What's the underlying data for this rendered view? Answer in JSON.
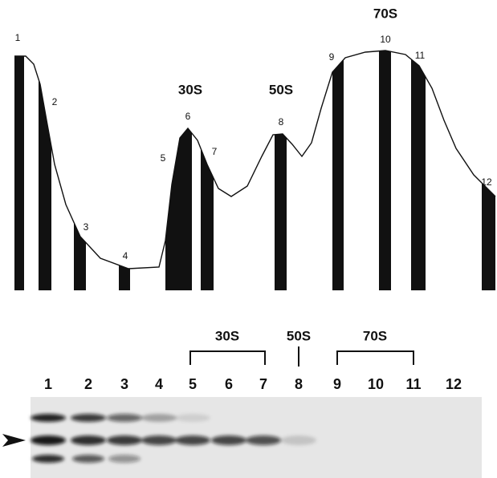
{
  "profile": {
    "fraction_labels": [
      "1",
      "2",
      "3",
      "4",
      "5",
      "6",
      "7",
      "8",
      "9",
      "10",
      "11",
      "12"
    ],
    "peak_labels": [
      "30S",
      "50S",
      "70S"
    ]
  },
  "blot": {
    "peak_labels": [
      "30S",
      "50S",
      "70S"
    ],
    "lane_labels": [
      "1",
      "2",
      "3",
      "4",
      "5",
      "6",
      "7",
      "8",
      "9",
      "10",
      "11",
      "12"
    ]
  }
}
